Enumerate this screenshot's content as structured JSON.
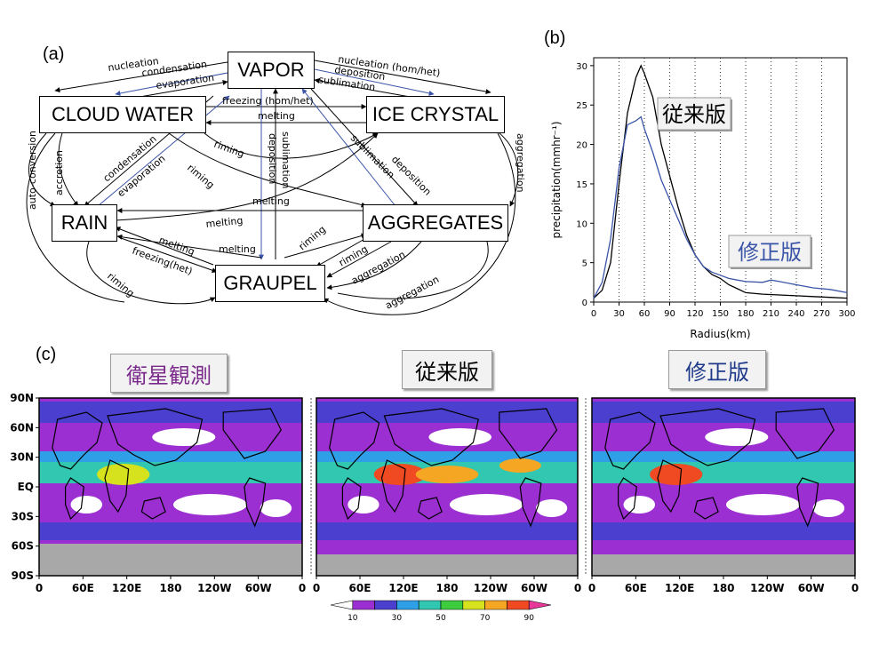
{
  "panel_labels": {
    "a": "(a)",
    "b": "(b)",
    "c": "(c)"
  },
  "diagram": {
    "nodes": {
      "vapor": "VAPOR",
      "cloud_water": "CLOUD WATER",
      "ice_crystal": "ICE CRYSTAL",
      "rain": "RAIN",
      "aggregates": "AGGREGATES",
      "graupel": "GRAUPEL"
    },
    "process_labels": {
      "nucleation_left": "nucleation",
      "condensation_top": "condensation",
      "evaporation_top": "evaporation",
      "nucleation_right": "nucleation (hom/het)",
      "deposition_top": "deposition",
      "sublimation_top": "sublimation",
      "freezing_hom_het": "freezing (hom/het)",
      "melting_top": "melting",
      "auto_conversion": "auto-conversion",
      "accretion": "accretion",
      "condensation_mid": "condensation",
      "evaporation_mid": "evaporation",
      "riming_1": "riming",
      "riming_2": "riming",
      "deposition_mid": "deposition",
      "sublimation_mid": "sublimation",
      "sublimation_right": "sublimation",
      "deposition_right": "deposition",
      "aggregation_right": "aggregation",
      "melting_mid": "melting",
      "melting_rain": "melting",
      "melting_low1": "melting",
      "melting_low2": "melting",
      "freezing_het": "freezing(het)",
      "riming_agg": "riming",
      "riming_graupel": "riming",
      "riming_bottom_left": "riming",
      "aggregation_low1": "aggregation",
      "aggregation_low2": "aggregation"
    }
  },
  "chart_data": [
    {
      "type": "line",
      "panel": "(b)",
      "xlabel": "Radius(km)",
      "ylabel": "precipitation(mmhr⁻¹)",
      "xlim": [
        0,
        300
      ],
      "ylim": [
        0,
        31
      ],
      "x_ticks": [
        0,
        30,
        60,
        90,
        120,
        150,
        180,
        210,
        240,
        270,
        300
      ],
      "y_ticks": [
        0,
        5,
        10,
        15,
        20,
        25,
        30
      ],
      "grid": "dotted vertical",
      "series": [
        {
          "name": "従来版",
          "color": "#000000",
          "x": [
            0,
            10,
            20,
            30,
            40,
            50,
            56,
            60,
            70,
            80,
            90,
            100,
            110,
            120,
            130,
            140,
            150,
            160,
            170,
            180,
            200,
            220,
            240,
            260,
            280,
            300
          ],
          "y": [
            0.5,
            1.5,
            5,
            15,
            24,
            28.5,
            30,
            29,
            26,
            20,
            16,
            12,
            8.5,
            6,
            4.5,
            3.5,
            3,
            2.2,
            1.7,
            1.2,
            1.0,
            0.9,
            0.8,
            0.7,
            0.6,
            0.5
          ]
        },
        {
          "name": "修正版",
          "color": "#3a55a8",
          "x": [
            0,
            10,
            20,
            30,
            40,
            50,
            56,
            60,
            70,
            80,
            90,
            100,
            110,
            120,
            130,
            140,
            150,
            160,
            170,
            180,
            200,
            210,
            220,
            240,
            260,
            280,
            300
          ],
          "y": [
            0.5,
            2.5,
            8,
            17,
            22.5,
            23,
            23.5,
            22,
            19,
            15.5,
            13,
            10.5,
            8,
            6,
            4.5,
            3.8,
            3.4,
            3.0,
            2.8,
            2.6,
            2.5,
            2.8,
            2.6,
            2.2,
            1.8,
            1.6,
            1.2
          ]
        }
      ]
    },
    {
      "type": "heatmap",
      "panel": "(c)",
      "maps": [
        {
          "title": "衛星観測",
          "title_color": "#7a2a8a"
        },
        {
          "title": "従来版",
          "title_color": "#000000"
        },
        {
          "title": "修正版",
          "title_color": "#1f3a8a"
        }
      ],
      "lat_ticks": [
        "90N",
        "60N",
        "30N",
        "EQ",
        "30S",
        "60S",
        "90S"
      ],
      "lon_ticks": [
        "0",
        "60E",
        "120E",
        "180",
        "120W",
        "60W",
        "0"
      ],
      "colorbar_ticks": [
        "10",
        "30",
        "50",
        "70",
        "90"
      ],
      "colorbar_colors": [
        "#ffffff",
        "#9b2fd1",
        "#4a3fcf",
        "#2f9fe8",
        "#31c7b0",
        "#3dcc3d",
        "#d6e21e",
        "#f5a623",
        "#f04a23",
        "#e8389a"
      ]
    }
  ]
}
